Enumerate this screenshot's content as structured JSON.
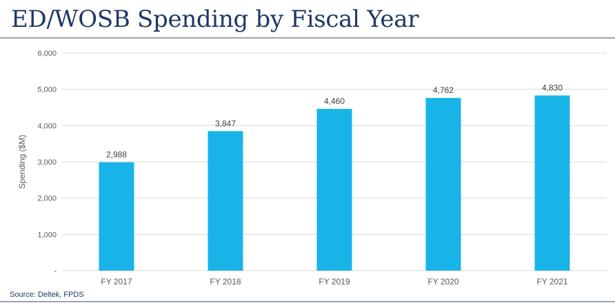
{
  "header": {
    "title": "ED/WOSB Spending by Fiscal Year"
  },
  "footer": {
    "source": "Source: Deltek, FPDS"
  },
  "colors": {
    "bar": "#18b4e8",
    "grid": "#d9d9d9",
    "title": "#1f3864",
    "axis_text": "#595959"
  },
  "chart_data": {
    "type": "bar",
    "title": "ED/WOSB Spending by Fiscal Year",
    "xlabel": "",
    "ylabel": "Spending ($M)",
    "categories": [
      "FY 2017",
      "FY 2018",
      "FY 2019",
      "FY 2020",
      "FY 2021"
    ],
    "values": [
      2988,
      3847,
      4460,
      4762,
      4830
    ],
    "data_labels": [
      "2,988",
      "3,847",
      "4,460",
      "4,762",
      "4,830"
    ],
    "ylim": [
      0,
      6000
    ],
    "yticks": [
      0,
      1000,
      2000,
      3000,
      4000,
      5000,
      6000
    ],
    "ytick_labels": [
      "-",
      "1,000",
      "2,000",
      "3,000",
      "4,000",
      "5,000",
      "6,000"
    ],
    "grid": true,
    "legend": "none"
  }
}
